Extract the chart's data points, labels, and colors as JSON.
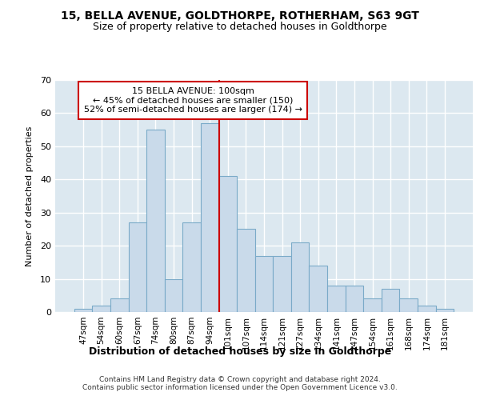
{
  "title_line1": "15, BELLA AVENUE, GOLDTHORPE, ROTHERHAM, S63 9GT",
  "title_line2": "Size of property relative to detached houses in Goldthorpe",
  "xlabel": "Distribution of detached houses by size in Goldthorpe",
  "ylabel": "Number of detached properties",
  "categories": [
    "47sqm",
    "54sqm",
    "60sqm",
    "67sqm",
    "74sqm",
    "80sqm",
    "87sqm",
    "94sqm",
    "101sqm",
    "107sqm",
    "114sqm",
    "121sqm",
    "127sqm",
    "134sqm",
    "141sqm",
    "147sqm",
    "154sqm",
    "161sqm",
    "168sqm",
    "174sqm",
    "181sqm"
  ],
  "values": [
    1,
    2,
    4,
    27,
    55,
    10,
    27,
    57,
    41,
    25,
    17,
    17,
    21,
    14,
    8,
    8,
    4,
    7,
    4,
    2,
    1
  ],
  "bar_color": "#c9daea",
  "bar_edge_color": "#7aaac8",
  "vline_index": 8,
  "vline_color": "#cc0000",
  "annotation_text": "15 BELLA AVENUE: 100sqm\n← 45% of detached houses are smaller (150)\n52% of semi-detached houses are larger (174) →",
  "annotation_box_facecolor": "#ffffff",
  "annotation_border_color": "#cc0000",
  "ylim": [
    0,
    70
  ],
  "yticks": [
    0,
    10,
    20,
    30,
    40,
    50,
    60,
    70
  ],
  "plot_bg_color": "#dce8f0",
  "fig_bg_color": "#ffffff",
  "grid_color": "#ffffff",
  "footer_line1": "Contains HM Land Registry data © Crown copyright and database right 2024.",
  "footer_line2": "Contains public sector information licensed under the Open Government Licence v3.0."
}
